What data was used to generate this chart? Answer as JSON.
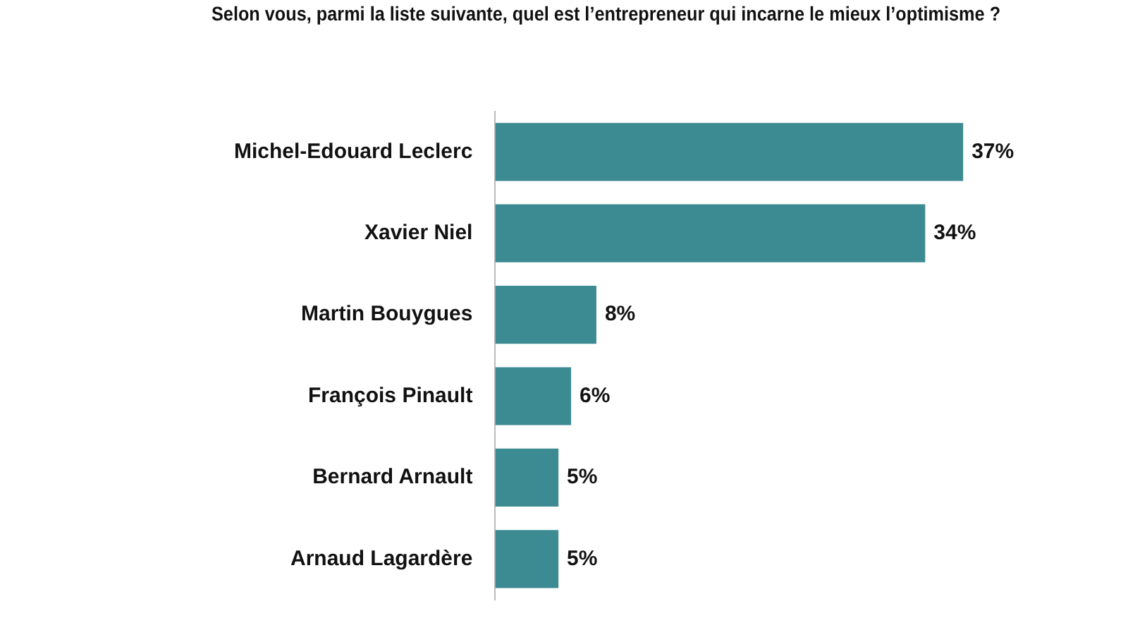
{
  "chart_data": {
    "type": "bar",
    "orientation": "horizontal",
    "title": "Selon vous, parmi la liste suivante, quel est l’entrepreneur qui incarne le mieux l’optimisme ?",
    "categories": [
      "Michel-Edouard Leclerc",
      "Xavier Niel",
      "Martin Bouygues",
      "François Pinault",
      "Bernard Arnault",
      "Arnaud Lagardère"
    ],
    "values": [
      37,
      34,
      8,
      6,
      5,
      5
    ],
    "value_labels": [
      "37%",
      "34%",
      "8%",
      "6%",
      "5%",
      "5%"
    ],
    "color": "#3d8b92",
    "grid": false,
    "legend": false,
    "tick_labels": "y"
  }
}
